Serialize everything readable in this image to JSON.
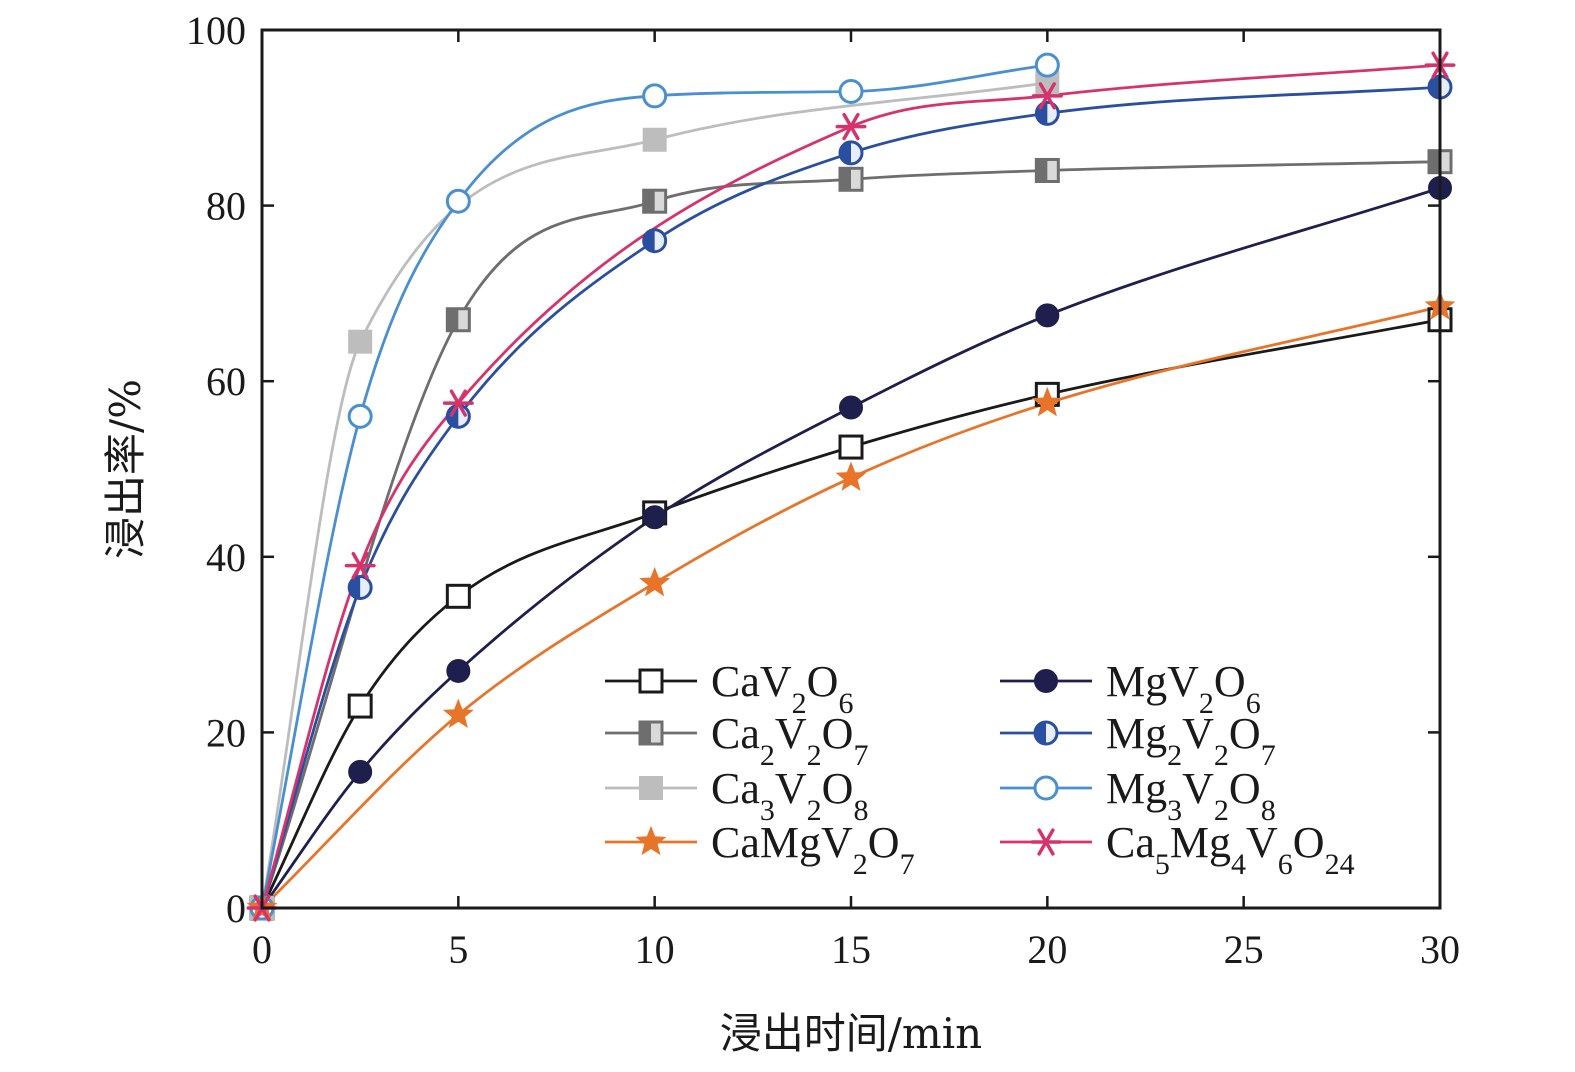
{
  "chart_data": {
    "type": "line",
    "xlabel": "浸出时间/min",
    "ylabel": "浸出率/%",
    "xlim": [
      0,
      30
    ],
    "ylim": [
      0,
      100
    ],
    "xticks": [
      0,
      5,
      10,
      15,
      20,
      25,
      30
    ],
    "yticks": [
      0,
      20,
      40,
      60,
      80,
      100
    ],
    "grid": false,
    "legend_position": "bottom-right",
    "series": [
      {
        "name": "CaV2O6",
        "label_parts": [
          [
            "CaV",
            ""
          ],
          [
            "2",
            "sub"
          ],
          [
            "O",
            ""
          ],
          [
            "6",
            "sub"
          ]
        ],
        "marker": "square-open",
        "color": "#1a1a1a",
        "x": [
          0,
          2.5,
          5,
          10,
          15,
          20,
          30
        ],
        "y": [
          0,
          23,
          35.5,
          45,
          52.5,
          58.5,
          67
        ]
      },
      {
        "name": "MgV2O6",
        "label_parts": [
          [
            "MgV",
            ""
          ],
          [
            "2",
            "sub"
          ],
          [
            "O",
            ""
          ],
          [
            "6",
            "sub"
          ]
        ],
        "marker": "circle-filled",
        "color": "#1f1f4d",
        "x": [
          0,
          2.5,
          5,
          10,
          15,
          20,
          30
        ],
        "y": [
          0,
          15.5,
          27,
          44.5,
          57,
          67.5,
          82
        ]
      },
      {
        "name": "Ca2V2O7",
        "label_parts": [
          [
            "Ca",
            ""
          ],
          [
            "2",
            "sub"
          ],
          [
            "V",
            ""
          ],
          [
            "2",
            "sub"
          ],
          [
            "O",
            ""
          ],
          [
            "7",
            "sub"
          ]
        ],
        "marker": "square-half",
        "color": "#6e6e6e",
        "x": [
          0,
          5,
          10,
          15,
          20,
          30
        ],
        "y": [
          0,
          67,
          80.5,
          83,
          84,
          85
        ]
      },
      {
        "name": "Mg2V2O7",
        "label_parts": [
          [
            "Mg",
            ""
          ],
          [
            "2",
            "sub"
          ],
          [
            "V",
            ""
          ],
          [
            "2",
            "sub"
          ],
          [
            "O",
            ""
          ],
          [
            "7",
            "sub"
          ]
        ],
        "marker": "circle-half",
        "color": "#2b4fa0",
        "x": [
          0,
          2.5,
          5,
          10,
          15,
          20,
          30
        ],
        "y": [
          0,
          36.5,
          56,
          76,
          86,
          90.5,
          93.5
        ]
      },
      {
        "name": "Ca3V2O8",
        "label_parts": [
          [
            "Ca",
            ""
          ],
          [
            "3",
            "sub"
          ],
          [
            "V",
            ""
          ],
          [
            "2",
            "sub"
          ],
          [
            "O",
            ""
          ],
          [
            "8",
            "sub"
          ]
        ],
        "marker": "square-filled",
        "color": "#bdbdbd",
        "x": [
          0,
          2.5,
          10,
          20
        ],
        "y": [
          0,
          64.5,
          87.5,
          94
        ]
      },
      {
        "name": "Mg3V2O8",
        "label_parts": [
          [
            "Mg",
            ""
          ],
          [
            "3",
            "sub"
          ],
          [
            "V",
            ""
          ],
          [
            "2",
            "sub"
          ],
          [
            "O",
            ""
          ],
          [
            "8",
            "sub"
          ]
        ],
        "marker": "circle-open",
        "color": "#4a8fd0",
        "x": [
          0,
          2.5,
          5,
          10,
          15,
          20
        ],
        "y": [
          0,
          56,
          80.5,
          92.5,
          93,
          96
        ]
      },
      {
        "name": "CaMgV2O7",
        "label_parts": [
          [
            "CaMgV",
            ""
          ],
          [
            "2",
            "sub"
          ],
          [
            "O",
            ""
          ],
          [
            "7",
            "sub"
          ]
        ],
        "marker": "star",
        "color": "#e8742a",
        "x": [
          0,
          5,
          10,
          15,
          20,
          30
        ],
        "y": [
          0,
          22,
          37,
          49,
          57.5,
          68.5
        ]
      },
      {
        "name": "Ca5Mg4V6O24",
        "label_parts": [
          [
            "Ca",
            ""
          ],
          [
            "5",
            "sub"
          ],
          [
            "Mg",
            ""
          ],
          [
            "4",
            "sub"
          ],
          [
            "V",
            ""
          ],
          [
            "6",
            "sub"
          ],
          [
            "O",
            ""
          ],
          [
            "24",
            "sub"
          ]
        ],
        "marker": "asterisk",
        "color": "#d6336c",
        "x": [
          0,
          2.5,
          5,
          15,
          20,
          30
        ],
        "y": [
          0,
          39,
          57.5,
          89,
          92.5,
          96
        ]
      }
    ]
  }
}
